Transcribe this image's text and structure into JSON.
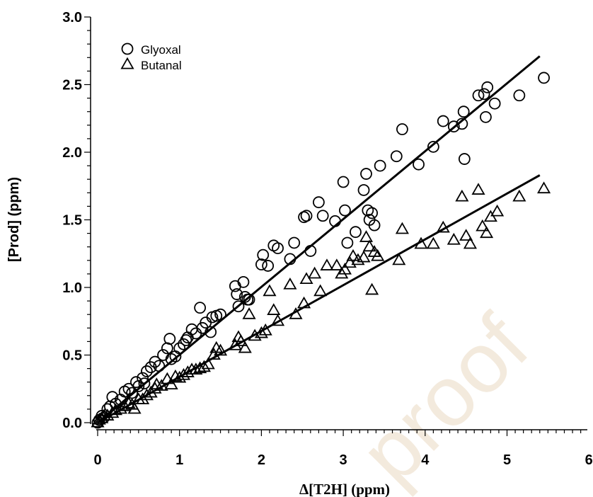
{
  "chart_data": {
    "type": "scatter",
    "xlabel": "Δ[T2H] (ppm)",
    "ylabel": "[Prod] (ppm)",
    "xlim": [
      0,
      6
    ],
    "ylim": [
      0,
      3.0
    ],
    "x_ticks": [
      "0",
      "1",
      "2",
      "3",
      "4",
      "5",
      "6"
    ],
    "y_ticks": [
      "0.0",
      "0.5",
      "1.0",
      "1.5",
      "2.0",
      "2.5",
      "3.0"
    ],
    "legend_position": "top-left",
    "watermark": "proof",
    "series": [
      {
        "name": "Glyoxal",
        "marker": "circle",
        "points": [
          [
            0.0,
            0.0
          ],
          [
            0.02,
            0.02
          ],
          [
            0.05,
            0.05
          ],
          [
            0.08,
            0.04
          ],
          [
            0.12,
            0.1
          ],
          [
            0.15,
            0.12
          ],
          [
            0.18,
            0.19
          ],
          [
            0.22,
            0.14
          ],
          [
            0.28,
            0.17
          ],
          [
            0.33,
            0.23
          ],
          [
            0.38,
            0.25
          ],
          [
            0.42,
            0.22
          ],
          [
            0.47,
            0.3
          ],
          [
            0.5,
            0.27
          ],
          [
            0.55,
            0.33
          ],
          [
            0.57,
            0.29
          ],
          [
            0.6,
            0.38
          ],
          [
            0.65,
            0.41
          ],
          [
            0.7,
            0.45
          ],
          [
            0.75,
            0.42
          ],
          [
            0.8,
            0.5
          ],
          [
            0.85,
            0.55
          ],
          [
            0.88,
            0.62
          ],
          [
            0.9,
            0.47
          ],
          [
            0.95,
            0.49
          ],
          [
            1.0,
            0.55
          ],
          [
            1.05,
            0.58
          ],
          [
            1.08,
            0.61
          ],
          [
            1.1,
            0.63
          ],
          [
            1.15,
            0.69
          ],
          [
            1.2,
            0.66
          ],
          [
            1.25,
            0.85
          ],
          [
            1.28,
            0.7
          ],
          [
            1.32,
            0.74
          ],
          [
            1.38,
            0.67
          ],
          [
            1.4,
            0.78
          ],
          [
            1.45,
            0.79
          ],
          [
            1.5,
            0.8
          ],
          [
            1.68,
            1.01
          ],
          [
            1.7,
            0.95
          ],
          [
            1.72,
            0.86
          ],
          [
            1.78,
            1.04
          ],
          [
            1.8,
            0.93
          ],
          [
            1.83,
            0.91
          ],
          [
            1.85,
            0.91
          ],
          [
            2.0,
            1.17
          ],
          [
            2.02,
            1.24
          ],
          [
            2.08,
            1.16
          ],
          [
            2.15,
            1.31
          ],
          [
            2.2,
            1.29
          ],
          [
            2.35,
            1.21
          ],
          [
            2.4,
            1.33
          ],
          [
            2.52,
            1.52
          ],
          [
            2.55,
            1.53
          ],
          [
            2.6,
            1.27
          ],
          [
            2.7,
            1.63
          ],
          [
            2.75,
            1.53
          ],
          [
            2.9,
            1.49
          ],
          [
            3.0,
            1.78
          ],
          [
            3.02,
            1.57
          ],
          [
            3.05,
            1.33
          ],
          [
            3.15,
            1.41
          ],
          [
            3.25,
            1.72
          ],
          [
            3.28,
            1.84
          ],
          [
            3.3,
            1.57
          ],
          [
            3.32,
            1.5
          ],
          [
            3.35,
            1.55
          ],
          [
            3.38,
            1.46
          ],
          [
            3.45,
            1.9
          ],
          [
            3.65,
            1.97
          ],
          [
            3.72,
            2.17
          ],
          [
            3.92,
            1.91
          ],
          [
            4.1,
            2.04
          ],
          [
            4.22,
            2.23
          ],
          [
            4.35,
            2.19
          ],
          [
            4.45,
            2.21
          ],
          [
            4.47,
            2.3
          ],
          [
            4.48,
            1.95
          ],
          [
            4.65,
            2.42
          ],
          [
            4.72,
            2.43
          ],
          [
            4.74,
            2.26
          ],
          [
            4.76,
            2.48
          ],
          [
            4.85,
            2.36
          ],
          [
            5.15,
            2.42
          ],
          [
            5.45,
            2.55
          ]
        ],
        "fit": [
          [
            0.0,
            0.0
          ],
          [
            5.4,
            2.71
          ]
        ]
      },
      {
        "name": "Butanal",
        "marker": "triangle",
        "points": [
          [
            0.0,
            0.0
          ],
          [
            0.02,
            0.02
          ],
          [
            0.05,
            0.03
          ],
          [
            0.08,
            0.05
          ],
          [
            0.12,
            0.05
          ],
          [
            0.18,
            0.07
          ],
          [
            0.22,
            0.09
          ],
          [
            0.28,
            0.1
          ],
          [
            0.33,
            0.12
          ],
          [
            0.38,
            0.14
          ],
          [
            0.42,
            0.13
          ],
          [
            0.45,
            0.1
          ],
          [
            0.5,
            0.17
          ],
          [
            0.55,
            0.17
          ],
          [
            0.6,
            0.2
          ],
          [
            0.65,
            0.22
          ],
          [
            0.7,
            0.25
          ],
          [
            0.72,
            0.28
          ],
          [
            0.78,
            0.27
          ],
          [
            0.85,
            0.32
          ],
          [
            0.9,
            0.28
          ],
          [
            0.95,
            0.34
          ],
          [
            1.0,
            0.33
          ],
          [
            1.05,
            0.35
          ],
          [
            1.1,
            0.37
          ],
          [
            1.15,
            0.39
          ],
          [
            1.2,
            0.39
          ],
          [
            1.25,
            0.4
          ],
          [
            1.3,
            0.41
          ],
          [
            1.35,
            0.43
          ],
          [
            1.42,
            0.5
          ],
          [
            1.45,
            0.55
          ],
          [
            1.5,
            0.53
          ],
          [
            1.68,
            0.57
          ],
          [
            1.72,
            0.63
          ],
          [
            1.75,
            0.6
          ],
          [
            1.8,
            0.55
          ],
          [
            1.85,
            0.8
          ],
          [
            1.92,
            0.64
          ],
          [
            2.0,
            0.66
          ],
          [
            2.05,
            0.68
          ],
          [
            2.1,
            0.97
          ],
          [
            2.15,
            0.83
          ],
          [
            2.2,
            0.75
          ],
          [
            2.35,
            1.02
          ],
          [
            2.42,
            0.8
          ],
          [
            2.52,
            0.88
          ],
          [
            2.55,
            1.06
          ],
          [
            2.65,
            1.1
          ],
          [
            2.72,
            0.97
          ],
          [
            2.8,
            1.16
          ],
          [
            2.92,
            1.16
          ],
          [
            2.98,
            1.1
          ],
          [
            3.02,
            1.13
          ],
          [
            3.08,
            1.18
          ],
          [
            3.12,
            1.23
          ],
          [
            3.18,
            1.2
          ],
          [
            3.25,
            1.22
          ],
          [
            3.28,
            1.37
          ],
          [
            3.32,
            1.3
          ],
          [
            3.35,
            0.98
          ],
          [
            3.38,
            1.26
          ],
          [
            3.42,
            1.23
          ],
          [
            3.68,
            1.2
          ],
          [
            3.72,
            1.43
          ],
          [
            3.95,
            1.32
          ],
          [
            4.1,
            1.32
          ],
          [
            4.22,
            1.44
          ],
          [
            4.35,
            1.35
          ],
          [
            4.45,
            1.67
          ],
          [
            4.5,
            1.38
          ],
          [
            4.55,
            1.32
          ],
          [
            4.65,
            1.72
          ],
          [
            4.7,
            1.45
          ],
          [
            4.75,
            1.4
          ],
          [
            4.8,
            1.52
          ],
          [
            4.88,
            1.56
          ],
          [
            5.15,
            1.67
          ],
          [
            5.45,
            1.73
          ]
        ],
        "fit": [
          [
            0.0,
            0.0
          ],
          [
            5.4,
            1.83
          ]
        ]
      }
    ]
  }
}
